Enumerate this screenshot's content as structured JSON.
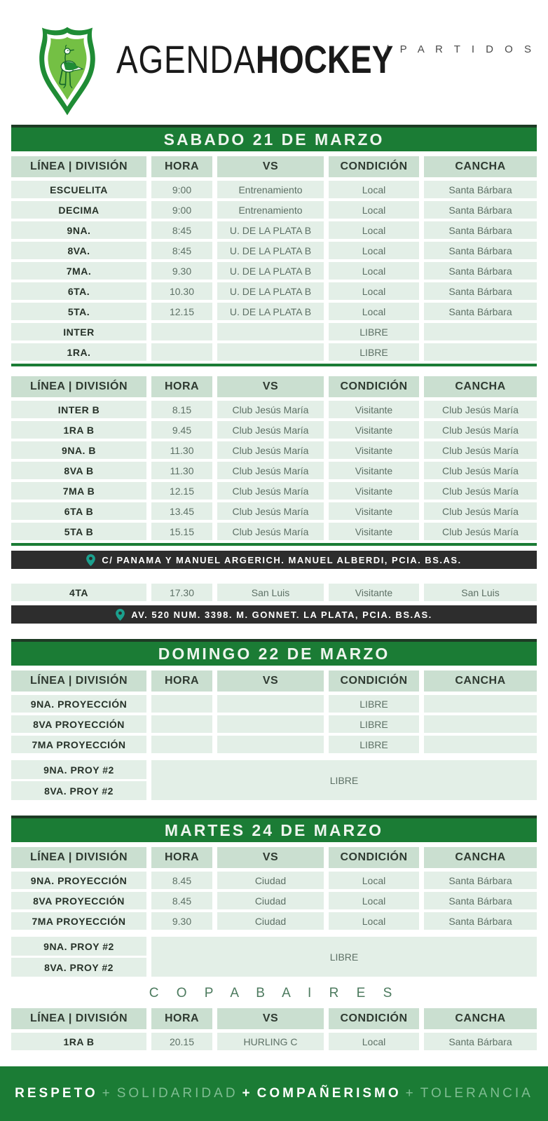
{
  "header": {
    "brand_agenda": "AGENDA",
    "brand_hockey": "HOCKEY",
    "section_label": "/ P A R T I D O S"
  },
  "columns": [
    "LÍNEA | DIVISIÓN",
    "HORA",
    "VS",
    "CONDICIÓN",
    "CANCHA"
  ],
  "blocks": [
    {
      "type": "day_title",
      "text": "SABADO 21 DE MARZO"
    },
    {
      "type": "table",
      "header": true,
      "rows": [
        [
          "ESCUELITA",
          "9:00",
          "Entrenamiento",
          "Local",
          "Santa Bárbara"
        ],
        [
          "DECIMA",
          "9:00",
          "Entrenamiento",
          "Local",
          "Santa Bárbara"
        ],
        [
          "9NA.",
          "8:45",
          "U. DE LA PLATA B",
          "Local",
          "Santa Bárbara"
        ],
        [
          "8VA.",
          "8:45",
          "U. DE LA PLATA B",
          "Local",
          "Santa Bárbara"
        ],
        [
          "7MA.",
          "9.30",
          "U. DE LA PLATA B",
          "Local",
          "Santa Bárbara"
        ],
        [
          "6TA.",
          "10.30",
          "U. DE LA PLATA B",
          "Local",
          "Santa Bárbara"
        ],
        [
          "5TA.",
          "12.15",
          "U. DE LA PLATA B",
          "Local",
          "Santa Bárbara"
        ],
        [
          "INTER",
          "",
          "",
          "LIBRE",
          ""
        ],
        [
          "1RA.",
          "",
          "",
          "LIBRE",
          ""
        ]
      ]
    },
    {
      "type": "rule"
    },
    {
      "type": "table",
      "header": true,
      "rows": [
        [
          "INTER B",
          "8.15",
          "Club Jesús María",
          "Visitante",
          "Club Jesús María"
        ],
        [
          "1RA B",
          "9.45",
          "Club Jesús María",
          "Visitante",
          "Club Jesús María"
        ],
        [
          "9NA. B",
          "11.30",
          "Club Jesús María",
          "Visitante",
          "Club Jesús María"
        ],
        [
          "8VA B",
          "11.30",
          "Club Jesús María",
          "Visitante",
          "Club Jesús María"
        ],
        [
          "7MA B",
          "12.15",
          "Club Jesús María",
          "Visitante",
          "Club Jesús María"
        ],
        [
          "6TA B",
          "13.45",
          "Club Jesús María",
          "Visitante",
          "Club Jesús María"
        ],
        [
          "5TA B",
          "15.15",
          "Club Jesús María",
          "Visitante",
          "Club Jesús María"
        ]
      ]
    },
    {
      "type": "rule"
    },
    {
      "type": "address",
      "text": "C/ PANAMA Y MANUEL ARGERICH. MANUEL ALBERDI, PCIA. BS.AS."
    },
    {
      "type": "table",
      "header": false,
      "rows": [
        [
          "4TA",
          "17.30",
          "San Luis",
          "Visitante",
          "San Luis"
        ]
      ]
    },
    {
      "type": "address",
      "text": "AV. 520 NUM. 3398. M. GONNET. LA PLATA, PCIA. BS.AS."
    },
    {
      "type": "day_title",
      "text": "DOMINGO 22 DE MARZO"
    },
    {
      "type": "table",
      "header": true,
      "rows": [
        [
          "9NA. PROYECCIÓN",
          "",
          "",
          "LIBRE",
          ""
        ],
        [
          "8VA PROYECCIÓN",
          "",
          "",
          "LIBRE",
          ""
        ],
        [
          "7MA PROYECCIÓN",
          "",
          "",
          "LIBRE",
          ""
        ]
      ]
    },
    {
      "type": "merged",
      "left": [
        "9NA. PROY #2",
        "8VA. PROY #2"
      ],
      "right": "LIBRE"
    },
    {
      "type": "day_title",
      "text": "MARTES 24 DE MARZO"
    },
    {
      "type": "table",
      "header": true,
      "rows": [
        [
          "9NA. PROYECCIÓN",
          "8.45",
          "Ciudad",
          "Local",
          "Santa Bárbara"
        ],
        [
          "8VA PROYECCIÓN",
          "8.45",
          "Ciudad",
          "Local",
          "Santa Bárbara"
        ],
        [
          "7MA PROYECCIÓN",
          "9.30",
          "Ciudad",
          "Local",
          "Santa Bárbara"
        ]
      ]
    },
    {
      "type": "merged",
      "left": [
        "9NA. PROY #2",
        "8VA. PROY #2"
      ],
      "right": "LIBRE"
    },
    {
      "type": "subtitle",
      "text": "C O P A   B A I R E S"
    },
    {
      "type": "table",
      "header": true,
      "rows": [
        [
          "1RA B",
          "20.15",
          "HURLING C",
          "Local",
          "Santa Bárbara"
        ]
      ]
    }
  ],
  "footer": {
    "words": [
      {
        "text": "RESPETO",
        "bold": true
      },
      {
        "text": "+",
        "bold": false
      },
      {
        "text": "SOLIDARIDAD",
        "bold": false
      },
      {
        "text": "+",
        "bold": true
      },
      {
        "text": "COMPAÑERISMO",
        "bold": true
      },
      {
        "text": "+",
        "bold": false
      },
      {
        "text": "TOLERANCIA",
        "bold": false
      }
    ]
  },
  "theme": {
    "green": "#1b7c35",
    "head-bg": "#cadfd0",
    "row-bg": "#e3efe7",
    "bar-black": "#2d2d2d",
    "pin": "#1ba08e",
    "footer-light": "#7fbd92",
    "logo-green": "#1f8c35",
    "logo-light": "#74c044"
  }
}
